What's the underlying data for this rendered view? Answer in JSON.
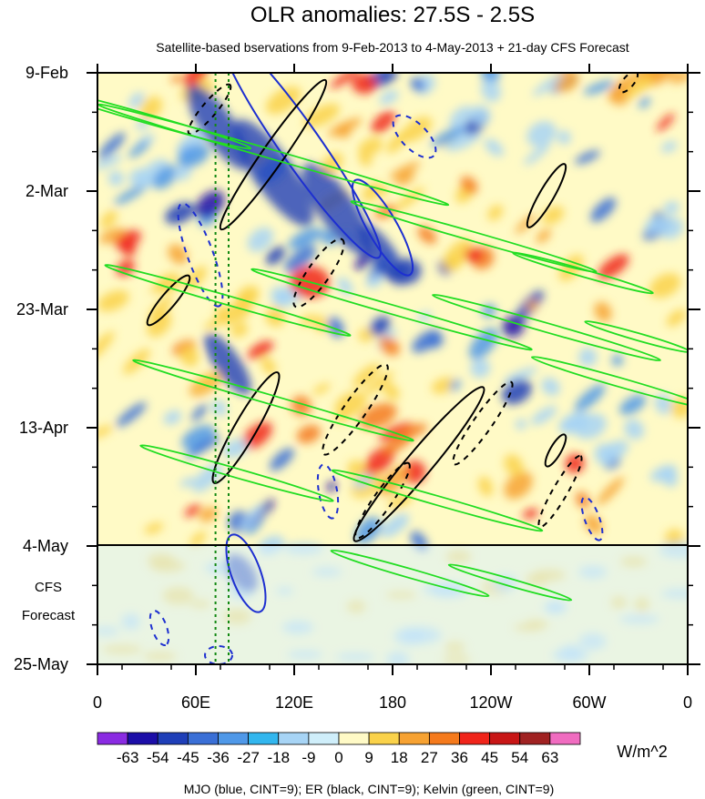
{
  "chart_data": {
    "type": "heatmap",
    "title": "OLR anomalies: 27.5S - 2.5S",
    "subtitle": "Satellite-based bservations from 9-Feb-2013 to 4-May-2013 + 21-day CFS Forecast",
    "x_ticks": [
      "0",
      "60E",
      "120E",
      "180",
      "120W",
      "60W",
      "0"
    ],
    "y_ticks": [
      "9-Feb",
      "2-Mar",
      "23-Mar",
      "13-Apr",
      "4-May",
      "25-May"
    ],
    "forecast_label": "CFS\nForecast",
    "forecast_start": "4-May",
    "colorbar": {
      "levels": [
        "-63",
        "-54",
        "-45",
        "-36",
        "-27",
        "-18",
        "-9",
        "0",
        "9",
        "18",
        "27",
        "36",
        "45",
        "54",
        "63"
      ],
      "colors": [
        "#8a2be2",
        "#1c0ea8",
        "#1f3fb8",
        "#3a6fd6",
        "#4f98e8",
        "#32b6ee",
        "#a7d4f5",
        "#cfeefa",
        "#fffac6",
        "#fad24a",
        "#f7a232",
        "#f57a1c",
        "#f0241a",
        "#c81616",
        "#a02222",
        "#f06cc0"
      ],
      "units": "W/m^2"
    },
    "legend_text": "MJO (blue, CINT=9); ER (black, CINT=9); Kelvin (green, CINT=9)",
    "series": [
      {
        "color": "#1d2fd0"
      },
      {
        "color": "#000000"
      },
      {
        "color": "#22dd22"
      }
    ],
    "reference_longitudes": [
      72,
      80
    ]
  }
}
